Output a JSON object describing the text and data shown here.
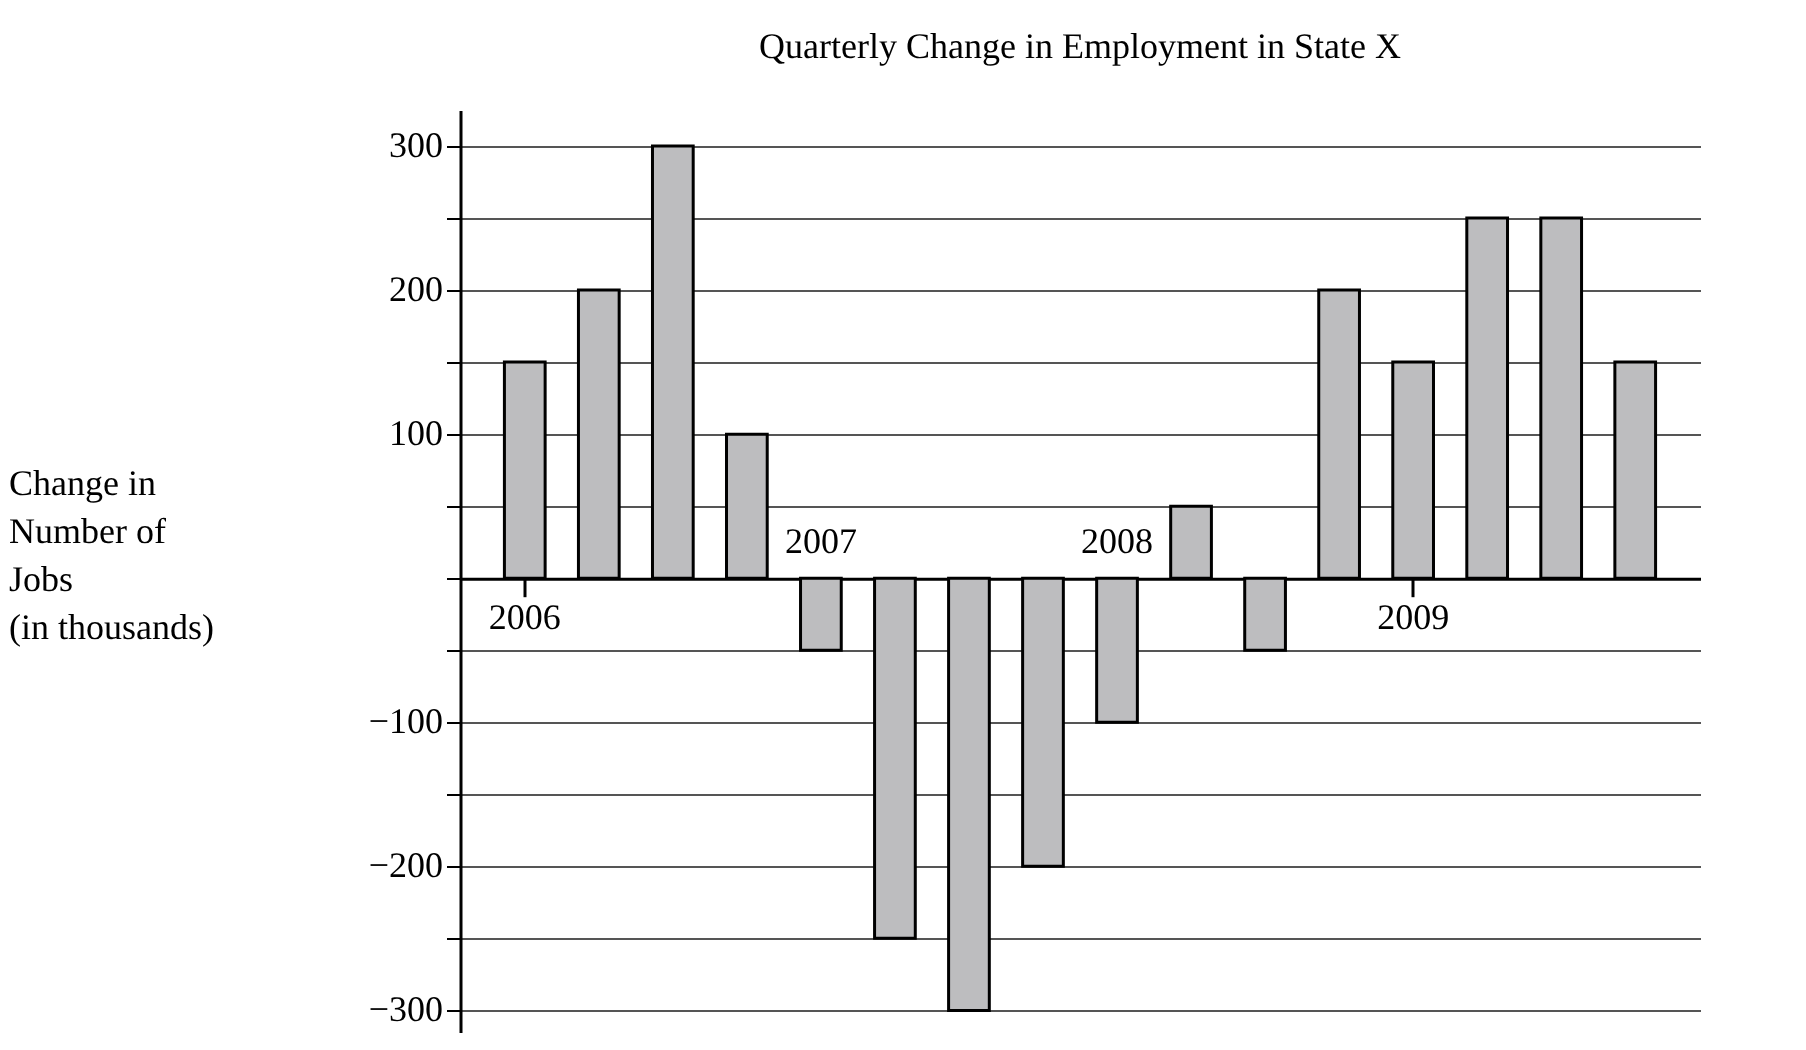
{
  "chart_data": {
    "type": "bar",
    "title": "Quarterly Change in Employment in State X",
    "ylabel": "Change in\nNumber of\nJobs\n(in thousands)",
    "categories": [
      "2006",
      null,
      null,
      null,
      "2007",
      null,
      null,
      null,
      "2008",
      null,
      null,
      null,
      "2009",
      null,
      null,
      null
    ],
    "values": [
      150,
      200,
      300,
      100,
      -50,
      -250,
      -300,
      -200,
      -100,
      50,
      -50,
      200,
      150,
      250,
      250,
      150
    ],
    "color": "#bdbdbf",
    "ylim": [
      -315,
      325
    ],
    "yticks": [
      {
        "value": -300,
        "label": "−300"
      },
      {
        "value": -250,
        "label": null
      },
      {
        "value": -200,
        "label": "−200"
      },
      {
        "value": -150,
        "label": null
      },
      {
        "value": -100,
        "label": "−100"
      },
      {
        "value": -50,
        "label": null
      },
      {
        "value": 0,
        "label": null
      },
      {
        "value": 50,
        "label": null
      },
      100,
      {
        "value": 150,
        "label": null
      },
      200,
      {
        "value": 250,
        "label": null
      },
      300
    ],
    "grid": "y"
  }
}
